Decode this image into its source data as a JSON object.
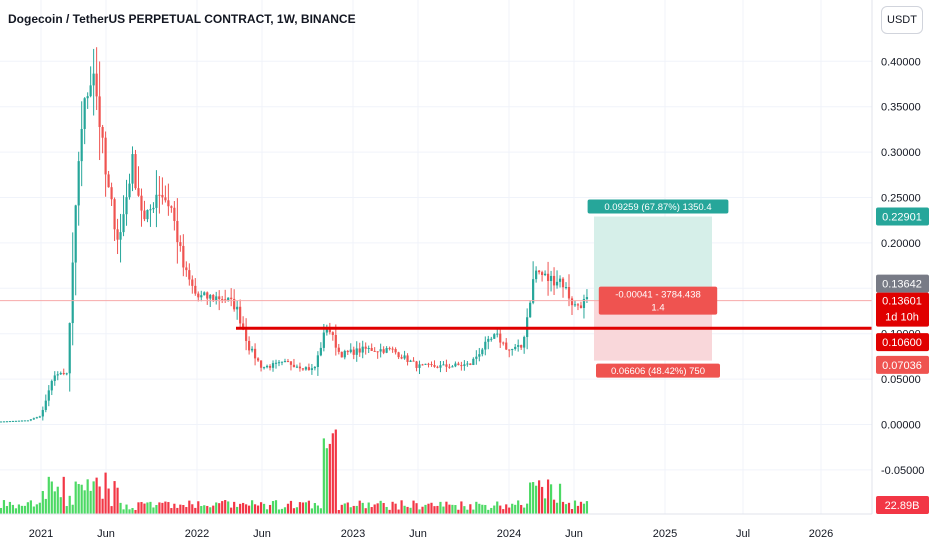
{
  "header": {
    "title": "Dogecoin / TetherUS PERPETUAL CONTRACT, 1W, BINANCE",
    "currency": "USDT"
  },
  "colors": {
    "up": "#26a69a",
    "down": "#ef5350",
    "vol_up": "#4cd964",
    "vol_down": "#f23645",
    "hline": "#e00000",
    "profit_zone": "#d6efe9",
    "loss_zone": "#f9d7da",
    "price_tag": "#787b86"
  },
  "chart_data": {
    "type": "candlestick",
    "symbol": "DOGEUSDT.P",
    "interval": "1W",
    "y_axis": {
      "ticks": [
        "0.40000",
        "0.35000",
        "0.30000",
        "0.25000",
        "0.20000",
        "0.15000",
        "0.10000",
        "0.05000",
        "0.00000",
        "-0.05000"
      ],
      "range": [
        -0.08,
        0.46
      ]
    },
    "x_axis": {
      "ticks": [
        "2021",
        "Jun",
        "2022",
        "Jun",
        "2023",
        "Jun",
        "2024",
        "Jun",
        "2025",
        "Jul",
        "2026"
      ]
    },
    "price_labels": {
      "target": "0.22901",
      "current": "0.13642",
      "last": "0.13601",
      "countdown": "1d 10h",
      "level": "0.10600",
      "stop": "0.07036",
      "volume": "22.89B"
    },
    "horizontal_line": {
      "value": 0.106,
      "from": "2022-04"
    },
    "position": {
      "entry": 0.1364,
      "target": 0.22901,
      "stop": 0.07036,
      "target_label": "0.09259 (67.87%) 1350.4",
      "entry_label": "-0.00041 - 3784.438",
      "ratio_label": "1.4",
      "stop_label": "0.06606 (48.42%) 750"
    },
    "weekly_close_anchors": [
      {
        "date": "2020-09",
        "close": 0.0027
      },
      {
        "date": "2020-12",
        "close": 0.0046
      },
      {
        "date": "2021-01",
        "close": 0.0095
      },
      {
        "date": "2021-02",
        "close": 0.055
      },
      {
        "date": "2021-03",
        "close": 0.056
      },
      {
        "date": "2021-04",
        "close": 0.32
      },
      {
        "date": "2021-05",
        "close": 0.4
      },
      {
        "date": "2021-06",
        "close": 0.27
      },
      {
        "date": "2021-07",
        "close": 0.2
      },
      {
        "date": "2021-08",
        "close": 0.29
      },
      {
        "date": "2021-09",
        "close": 0.22
      },
      {
        "date": "2021-10",
        "close": 0.26
      },
      {
        "date": "2021-11",
        "close": 0.24
      },
      {
        "date": "2021-12",
        "close": 0.17
      },
      {
        "date": "2022-01",
        "close": 0.14
      },
      {
        "date": "2022-03",
        "close": 0.14
      },
      {
        "date": "2022-04",
        "close": 0.13
      },
      {
        "date": "2022-05",
        "close": 0.085
      },
      {
        "date": "2022-06",
        "close": 0.063
      },
      {
        "date": "2022-08",
        "close": 0.068
      },
      {
        "date": "2022-10",
        "close": 0.06
      },
      {
        "date": "2022-11",
        "close": 0.11
      },
      {
        "date": "2022-12",
        "close": 0.077
      },
      {
        "date": "2023-02",
        "close": 0.083
      },
      {
        "date": "2023-04",
        "close": 0.082
      },
      {
        "date": "2023-06",
        "close": 0.064
      },
      {
        "date": "2023-08",
        "close": 0.064
      },
      {
        "date": "2023-10",
        "close": 0.066
      },
      {
        "date": "2023-11",
        "close": 0.085
      },
      {
        "date": "2023-12",
        "close": 0.098
      },
      {
        "date": "2024-01",
        "close": 0.082
      },
      {
        "date": "2024-02",
        "close": 0.085
      },
      {
        "date": "2024-03",
        "close": 0.17
      },
      {
        "date": "2024-04",
        "close": 0.16
      },
      {
        "date": "2024-05",
        "close": 0.16
      },
      {
        "date": "2024-06",
        "close": 0.13
      },
      {
        "date": "2024-07",
        "close": 0.1364
      }
    ]
  }
}
